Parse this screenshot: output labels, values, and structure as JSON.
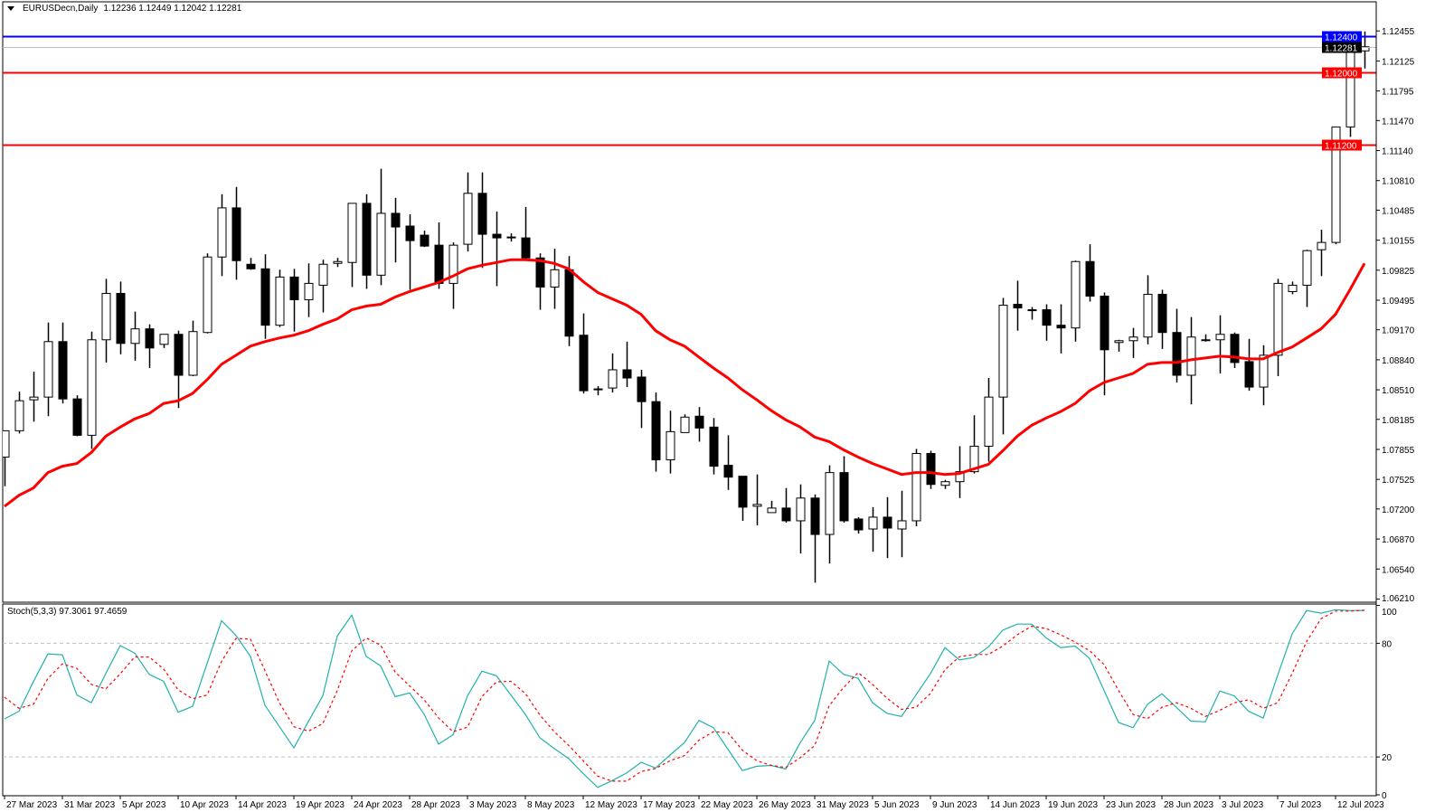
{
  "header": {
    "symbol_timeframe": "EURUSDecn,Daily",
    "ohlc": "1.12236 1.12449 1.12042 1.12281"
  },
  "colors": {
    "bull_body": "#ffffff",
    "bear_body": "#000000",
    "ma": "#ff0000",
    "stoch_main": "#20b2aa",
    "stoch_signal": "#ff0000",
    "level_blue": "#0000ff",
    "level_red": "#ff0000",
    "bid_line": "#c0c0c0"
  },
  "chart_data": [
    {
      "type": "candlestick",
      "title": "EURUSDecn,Daily",
      "ylim": [
        1.0621,
        1.1258
      ],
      "y_ticks": [
        "1.12455",
        "1.12125",
        "1.11795",
        "1.11470",
        "1.11140",
        "1.10810",
        "1.10485",
        "1.10155",
        "1.09825",
        "1.09495",
        "1.09170",
        "1.08840",
        "1.08510",
        "1.08185",
        "1.07855",
        "1.07525",
        "1.07200",
        "1.06870",
        "1.06540",
        "1.06210"
      ],
      "x_tick_labels": [
        "27 Mar 2023",
        "31 Mar 2023",
        "5 Apr 2023",
        "10 Apr 2023",
        "14 Apr 2023",
        "19 Apr 2023",
        "24 Apr 2023",
        "28 Apr 2023",
        "3 May 2023",
        "8 May 2023",
        "12 May 2023",
        "17 May 2023",
        "22 May 2023",
        "26 May 2023",
        "31 May 2023",
        "5 Jun 2023",
        "9 Jun 2023",
        "14 Jun 2023",
        "19 Jun 2023",
        "23 Jun 2023",
        "28 Jun 2023",
        "3 Jul 2023",
        "7 Jul 2023",
        "12 Jul 2023"
      ],
      "x_tick_every_bars": 4,
      "ohlc": [
        [
          1.0777,
          1.0806,
          1.0745,
          1.0806
        ],
        [
          1.0806,
          1.0849,
          1.0803,
          1.0839
        ],
        [
          1.084,
          1.0871,
          1.0816,
          1.0843
        ],
        [
          1.0843,
          1.0925,
          1.0822,
          1.0904
        ],
        [
          1.0904,
          1.0925,
          1.0836,
          1.0841
        ],
        [
          1.0841,
          1.0845,
          1.08,
          1.0801
        ],
        [
          1.0801,
          1.0915,
          1.0786,
          1.0906
        ],
        [
          1.0906,
          1.0973,
          1.0881,
          1.0957
        ],
        [
          1.0957,
          1.097,
          1.089,
          1.0902
        ],
        [
          1.0902,
          1.0937,
          1.0883,
          1.0918
        ],
        [
          1.0918,
          1.0923,
          1.0875,
          1.0897
        ],
        [
          1.0901,
          1.0912,
          1.0897,
          1.0912
        ],
        [
          1.0912,
          1.0916,
          1.0831,
          1.0867
        ],
        [
          1.0867,
          1.0927,
          1.0866,
          1.0915
        ],
        [
          1.0914,
          1.1001,
          1.0913,
          1.0997
        ],
        [
          1.0997,
          1.1066,
          1.0976,
          1.1051
        ],
        [
          1.1051,
          1.1074,
          1.0972,
          1.0993
        ],
        [
          1.0989,
          1.0996,
          1.0983,
          1.0984
        ],
        [
          1.0984,
          1.1,
          1.0907,
          1.0922
        ],
        [
          1.0922,
          1.0983,
          1.092,
          1.0975
        ],
        [
          1.0975,
          1.0984,
          1.0915,
          1.095
        ],
        [
          1.095,
          1.099,
          1.0931,
          1.0968
        ],
        [
          1.0966,
          1.0994,
          1.0936,
          1.0989
        ],
        [
          1.099,
          1.0996,
          1.0986,
          1.0992
        ],
        [
          1.0991,
          1.1056,
          1.0964,
          1.1056
        ],
        [
          1.1056,
          1.1066,
          1.0962,
          1.0977
        ],
        [
          1.0977,
          1.1094,
          1.0966,
          1.1045
        ],
        [
          1.1045,
          1.1062,
          1.0991,
          1.103
        ],
        [
          1.1031,
          1.1044,
          1.0961,
          1.1015
        ],
        [
          1.1021,
          1.1026,
          1.1008,
          1.1009
        ],
        [
          1.101,
          1.1035,
          1.0962,
          1.0968
        ],
        [
          1.0968,
          1.1013,
          1.094,
          1.101
        ],
        [
          1.1011,
          1.109,
          1.1003,
          1.1067
        ],
        [
          1.1067,
          1.109,
          1.0985,
          1.1022
        ],
        [
          1.1022,
          1.1047,
          1.0965,
          1.1018
        ],
        [
          1.1019,
          1.1023,
          1.1014,
          1.1018
        ],
        [
          1.1018,
          1.1052,
          1.0995,
          1.0996
        ],
        [
          1.0996,
          1.1001,
          1.0939,
          1.0964
        ],
        [
          1.0964,
          1.1006,
          1.094,
          1.0983
        ],
        [
          1.0983,
          1.0998,
          1.0899,
          1.091
        ],
        [
          1.0911,
          1.0935,
          1.0847,
          1.085
        ],
        [
          1.0852,
          1.0855,
          1.0845,
          1.0852
        ],
        [
          1.0853,
          1.0891,
          1.0848,
          1.0873
        ],
        [
          1.0873,
          1.0904,
          1.0854,
          1.0864
        ],
        [
          1.0865,
          1.0873,
          1.0809,
          1.0838
        ],
        [
          1.0838,
          1.0848,
          1.0761,
          1.0774
        ],
        [
          1.0774,
          1.0828,
          1.0759,
          1.0805
        ],
        [
          1.0804,
          1.0824,
          1.0804,
          1.0821
        ],
        [
          1.0822,
          1.0832,
          1.0794,
          1.0809
        ],
        [
          1.081,
          1.082,
          1.0758,
          1.0767
        ],
        [
          1.0768,
          1.0801,
          1.0741,
          1.0755
        ],
        [
          1.0756,
          1.0756,
          1.0707,
          1.0722
        ],
        [
          1.0723,
          1.0758,
          1.0702,
          1.0725
        ],
        [
          1.0716,
          1.0729,
          1.0716,
          1.0721
        ],
        [
          1.0721,
          1.0743,
          1.0705,
          1.0707
        ],
        [
          1.0707,
          1.0747,
          1.0671,
          1.0732
        ],
        [
          1.0732,
          1.0736,
          1.0639,
          1.0692
        ],
        [
          1.0692,
          1.0768,
          1.066,
          1.076
        ],
        [
          1.076,
          1.0778,
          1.0705,
          1.0707
        ],
        [
          1.0709,
          1.0711,
          1.0693,
          1.0697
        ],
        [
          1.0698,
          1.0722,
          1.0673,
          1.0711
        ],
        [
          1.0711,
          1.0733,
          1.0666,
          1.0699
        ],
        [
          1.0698,
          1.074,
          1.0667,
          1.0707
        ],
        [
          1.0707,
          1.0786,
          1.0701,
          1.0781
        ],
        [
          1.0781,
          1.0784,
          1.0742,
          1.0747
        ],
        [
          1.0746,
          1.0752,
          1.0742,
          1.075
        ],
        [
          1.075,
          1.0789,
          1.0732,
          1.0761
        ],
        [
          1.0761,
          1.0823,
          1.0759,
          1.0789
        ],
        [
          1.0789,
          1.0864,
          1.0772,
          1.0843
        ],
        [
          1.0843,
          1.0952,
          1.0802,
          1.0944
        ],
        [
          1.0945,
          1.0971,
          1.0916,
          1.0941
        ],
        [
          1.0939,
          1.0942,
          1.0928,
          1.0939
        ],
        [
          1.0939,
          1.0945,
          1.0905,
          1.0922
        ],
        [
          1.0922,
          1.0945,
          1.0891,
          1.0919
        ],
        [
          1.0919,
          1.0993,
          1.0904,
          1.0992
        ],
        [
          1.0992,
          1.1011,
          1.0948,
          1.0954
        ],
        [
          1.0954,
          1.0958,
          1.0845,
          1.0895
        ],
        [
          1.0903,
          1.0906,
          1.0893,
          1.0905
        ],
        [
          1.0905,
          1.0919,
          1.0886,
          1.0909
        ],
        [
          1.0909,
          1.0977,
          1.0901,
          1.0956
        ],
        [
          1.0956,
          1.0961,
          1.0896,
          1.0914
        ],
        [
          1.0914,
          1.094,
          1.0859,
          1.0867
        ],
        [
          1.0867,
          1.0931,
          1.0835,
          1.0909
        ],
        [
          1.0906,
          1.0912,
          1.0904,
          1.0906
        ],
        [
          1.0906,
          1.0933,
          1.0869,
          1.0912
        ],
        [
          1.0912,
          1.0914,
          1.0875,
          1.0881
        ],
        [
          1.0882,
          1.0907,
          1.085,
          1.0854
        ],
        [
          1.0854,
          1.09,
          1.0834,
          1.0889
        ],
        [
          1.0889,
          1.0973,
          1.0866,
          1.0968
        ],
        [
          1.0959,
          1.097,
          1.0956,
          1.0966
        ],
        [
          1.0966,
          1.1005,
          1.0942,
          1.1004
        ],
        [
          1.1005,
          1.1027,
          1.0976,
          1.1013
        ],
        [
          1.1013,
          1.114,
          1.1011,
          1.114
        ],
        [
          1.114,
          1.1228,
          1.1129,
          1.1224
        ],
        [
          1.12236,
          1.12449,
          1.12042,
          1.12281
        ]
      ],
      "moving_average": [
        1.0723,
        1.0735,
        1.0743,
        1.076,
        1.0767,
        1.077,
        1.0782,
        1.08,
        1.081,
        1.0819,
        1.0825,
        1.0836,
        1.0839,
        1.0847,
        1.0862,
        1.0879,
        1.0889,
        1.0899,
        1.0904,
        1.0908,
        1.0911,
        1.0916,
        1.0923,
        1.0929,
        1.0939,
        1.0943,
        1.0945,
        1.0953,
        1.0959,
        1.0964,
        1.0969,
        1.0976,
        1.0984,
        1.0988,
        1.0991,
        1.0994,
        1.0994,
        1.0993,
        1.099,
        1.0984,
        1.097,
        1.0958,
        1.0951,
        1.0944,
        1.0934,
        1.0916,
        1.0906,
        1.0899,
        1.0887,
        1.0875,
        1.0864,
        1.0851,
        1.084,
        1.0828,
        1.0818,
        1.081,
        1.0799,
        1.0794,
        1.0785,
        1.0777,
        1.077,
        1.0764,
        1.0758,
        1.076,
        1.076,
        1.0758,
        1.0759,
        1.0764,
        1.0769,
        1.0784,
        1.08,
        1.0812,
        1.082,
        1.0827,
        1.0836,
        1.085,
        1.0859,
        1.0864,
        1.0869,
        1.0879,
        1.0881,
        1.0881,
        1.0884,
        1.0886,
        1.0888,
        1.0887,
        1.0885,
        1.0885,
        1.0892,
        1.0898,
        1.0908,
        1.0918,
        1.0934,
        1.0961,
        1.099
      ],
      "levels": [
        {
          "price": "1.12400",
          "color": "#0000ff",
          "label_bg": "#0000ff"
        },
        {
          "price": "1.12281",
          "color": "#c0c0c0",
          "label_bg": "#000000"
        },
        {
          "price": "1.12000",
          "color": "#ff0000",
          "label_bg": "#ff0000"
        },
        {
          "price": "1.11200",
          "color": "#ff0000",
          "label_bg": "#ff0000"
        }
      ]
    },
    {
      "type": "line",
      "title": "Stoch(5,3,3) 97.3061 97.4659",
      "ylim": [
        0,
        100
      ],
      "y_ticks": [
        "100",
        "80",
        "20",
        "0"
      ],
      "levels": [
        80,
        20
      ],
      "series": [
        {
          "style": "solid",
          "color": "#20b2aa",
          "values": [
            40.1,
            44.1,
            59.8,
            74.4,
            73.9,
            52.7,
            48.6,
            64.0,
            78.8,
            74.8,
            63.6,
            59.9,
            43.6,
            46.7,
            69.3,
            91.9,
            84.1,
            73.1,
            47.3,
            36.0,
            24.8,
            38.6,
            52.3,
            83.8,
            94.9,
            73.1,
            68.0,
            51.8,
            53.8,
            42.6,
            26.8,
            31.7,
            52.2,
            65.3,
            62.8,
            52.7,
            42.5,
            30.1,
            24.4,
            19.1,
            11.2,
            3.9,
            7.5,
            11.5,
            17.2,
            14.2,
            21.0,
            27.6,
            39.3,
            35.4,
            24.1,
            12.8,
            15.1,
            15.5,
            13.6,
            27.6,
            39.3,
            70.6,
            63.6,
            61.5,
            48.6,
            43.0,
            41.4,
            52.7,
            64.0,
            77.7,
            71.2,
            72.5,
            78.0,
            86.9,
            90.1,
            90.1,
            82.8,
            77.7,
            78.5,
            72.0,
            55.1,
            38.2,
            35.4,
            47.8,
            53.3,
            46.2,
            38.9,
            38.5,
            54.8,
            52.2,
            44.1,
            40.5,
            63.1,
            84.9,
            97.3,
            95.9,
            97.7,
            97.3,
            97.3061
          ]
        },
        {
          "style": "dashed",
          "color": "#ff0000",
          "values": [
            51.5,
            45.7,
            47.8,
            61.5,
            69.1,
            66.8,
            58.3,
            55.9,
            63.9,
            72.8,
            72.8,
            66.4,
            55.4,
            50.7,
            52.7,
            70.4,
            82.6,
            82.2,
            65.6,
            48.6,
            36.0,
            33.6,
            37.6,
            55.1,
            76.0,
            82.8,
            79.0,
            64.8,
            57.5,
            50.2,
            40.6,
            33.3,
            35.7,
            51.9,
            59.6,
            59.9,
            53.5,
            42.2,
            33.3,
            26.0,
            18.0,
            9.9,
            7.2,
            7.2,
            12.3,
            13.9,
            18.0,
            20.7,
            28.9,
            33.3,
            32.8,
            23.6,
            18.0,
            15.5,
            14.4,
            19.6,
            26.0,
            47.0,
            56.7,
            64.5,
            58.3,
            51.0,
            45.1,
            46.2,
            53.5,
            66.0,
            72.9,
            74.1,
            74.1,
            78.5,
            84.5,
            89.0,
            87.8,
            84.5,
            80.6,
            76.1,
            68.8,
            55.1,
            42.5,
            40.2,
            46.2,
            48.6,
            45.7,
            41.4,
            44.6,
            48.6,
            50.2,
            45.7,
            48.6,
            64.0,
            80.9,
            93.0,
            97.0,
            97.0,
            97.4659
          ]
        }
      ]
    }
  ]
}
